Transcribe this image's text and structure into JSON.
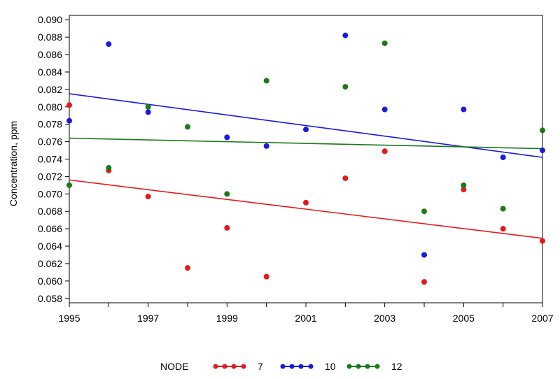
{
  "chart_data": {
    "type": "scatter",
    "title": "",
    "xlabel": "",
    "ylabel": "Concentration, ppm",
    "xlim": [
      1995,
      2007
    ],
    "ylim": [
      0.0575,
      0.0905
    ],
    "x_ticks": [
      "1995",
      "1997",
      "1999",
      "2001",
      "2003",
      "2005",
      "2007"
    ],
    "x_tick_values": [
      1995,
      1997,
      1999,
      2001,
      2003,
      2005,
      2007
    ],
    "y_ticks": [
      "0.058",
      "0.060",
      "0.062",
      "0.064",
      "0.066",
      "0.068",
      "0.070",
      "0.072",
      "0.074",
      "0.076",
      "0.078",
      "0.080",
      "0.082",
      "0.084",
      "0.086",
      "0.088",
      "0.090"
    ],
    "y_tick_values": [
      0.058,
      0.06,
      0.062,
      0.064,
      0.066,
      0.068,
      0.07,
      0.072,
      0.074,
      0.076,
      0.078,
      0.08,
      0.082,
      0.084,
      0.086,
      0.088,
      0.09
    ],
    "grid": false,
    "legend_title": "NODE",
    "legend_position": "bottom",
    "series": [
      {
        "name": "7",
        "color": "#e41a1c",
        "points": [
          [
            1995,
            0.0802
          ],
          [
            1996,
            0.0727
          ],
          [
            1997,
            0.0697
          ],
          [
            1998,
            0.0615
          ],
          [
            1999,
            0.0661
          ],
          [
            2000,
            0.0605
          ],
          [
            2001,
            0.069
          ],
          [
            2002,
            0.0718
          ],
          [
            2003,
            0.0749
          ],
          [
            2004,
            0.0599
          ],
          [
            2005,
            0.0705
          ],
          [
            2006,
            0.066
          ],
          [
            2007,
            0.0646
          ]
        ],
        "trend": [
          [
            1995,
            0.0716
          ],
          [
            2007,
            0.0649
          ]
        ]
      },
      {
        "name": "10",
        "color": "#1a1adf",
        "points": [
          [
            1995,
            0.0784
          ],
          [
            1996,
            0.0872
          ],
          [
            1997,
            0.0794
          ],
          [
            1999,
            0.0765
          ],
          [
            2000,
            0.0755
          ],
          [
            2001,
            0.0774
          ],
          [
            2002,
            0.0882
          ],
          [
            2003,
            0.0797
          ],
          [
            2004,
            0.063
          ],
          [
            2005,
            0.0797
          ],
          [
            2006,
            0.0742
          ],
          [
            2007,
            0.075
          ]
        ],
        "trend": [
          [
            1995,
            0.0815
          ],
          [
            2007,
            0.0742
          ]
        ]
      },
      {
        "name": "12",
        "color": "#1a7a1a",
        "points": [
          [
            1995,
            0.071
          ],
          [
            1996,
            0.073
          ],
          [
            1997,
            0.08
          ],
          [
            1998,
            0.0777
          ],
          [
            1999,
            0.07
          ],
          [
            2000,
            0.083
          ],
          [
            2002,
            0.0823
          ],
          [
            2003,
            0.0873
          ],
          [
            2004,
            0.068
          ],
          [
            2005,
            0.071
          ],
          [
            2006,
            0.0683
          ],
          [
            2007,
            0.0773
          ]
        ],
        "trend": [
          [
            1995,
            0.0764
          ],
          [
            2007,
            0.0752
          ]
        ]
      }
    ]
  }
}
